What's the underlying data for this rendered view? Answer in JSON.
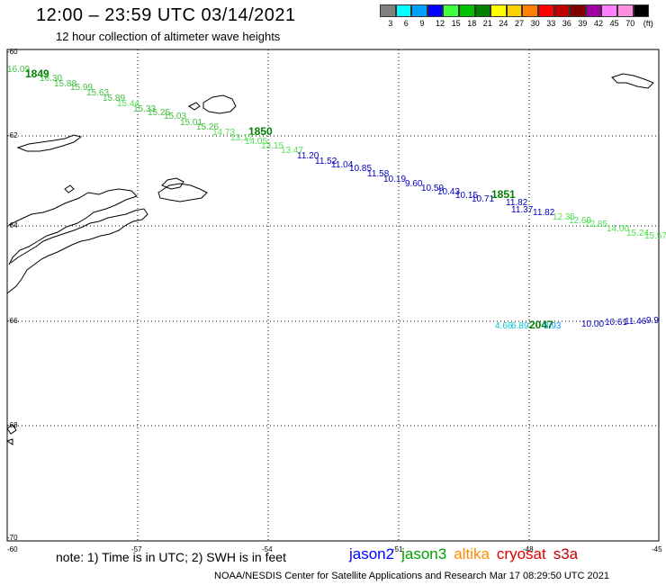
{
  "header": {
    "title": "12:00 – 23:59 UTC 03/14/2021",
    "subtitle": "12 hour collection of altimeter wave heights"
  },
  "legend": {
    "colors": [
      "#808080",
      "#00ffff",
      "#00a0ff",
      "#0000ff",
      "#40ff40",
      "#00c000",
      "#008000",
      "#ffff00",
      "#ffd000",
      "#ff8000",
      "#ff0000",
      "#c00000",
      "#800000",
      "#a000a0",
      "#ff80ff",
      "#ff90e0",
      "#000000"
    ],
    "labels": [
      "3",
      "6",
      "9",
      "12",
      "15",
      "18",
      "21",
      "24",
      "27",
      "30",
      "33",
      "36",
      "39",
      "42",
      "45",
      "70",
      "(ft)"
    ]
  },
  "axes": {
    "lat_labels": [
      "-60",
      "-62",
      "-64",
      "-66",
      "-68",
      "-70"
    ],
    "lon_labels": [
      "-60",
      "-57",
      "-54",
      "-51",
      "-48",
      "-45"
    ]
  },
  "tracks": [
    {
      "labels": [
        {
          "t": "16.09",
          "c": "#40c040"
        },
        {
          "t": "1849",
          "c": "#008000",
          "time": true
        },
        {
          "t": "16.30",
          "c": "#40c040"
        },
        {
          "t": "15.88",
          "c": "#40c040"
        },
        {
          "t": "15.99",
          "c": "#40c040"
        },
        {
          "t": "15.63",
          "c": "#40c040"
        },
        {
          "t": "15.89",
          "c": "#40c040"
        },
        {
          "t": "15.44",
          "c": "#50e050"
        },
        {
          "t": "15.33",
          "c": "#40c040"
        },
        {
          "t": "15.25",
          "c": "#40c040"
        },
        {
          "t": "15.03",
          "c": "#40c040"
        },
        {
          "t": "15.01",
          "c": "#40c040"
        },
        {
          "t": "15.26",
          "c": "#40c040"
        },
        {
          "t": "14.73",
          "c": "#50e050"
        },
        {
          "t": "1850",
          "c": "#008000",
          "time": true
        },
        {
          "t": "13.17",
          "c": "#50e050"
        },
        {
          "t": "14.05",
          "c": "#50e050"
        },
        {
          "t": "13.15",
          "c": "#50e050"
        },
        {
          "t": "13.47",
          "c": "#50e050"
        },
        {
          "t": "11.20",
          "c": "#0000c0"
        },
        {
          "t": "11.52",
          "c": "#0000c0"
        },
        {
          "t": "11.04",
          "c": "#0000c0"
        },
        {
          "t": "10.85",
          "c": "#0000c0"
        },
        {
          "t": "11.58",
          "c": "#0000c0"
        },
        {
          "t": "10.19",
          "c": "#0000c0"
        },
        {
          "t": "9.60",
          "c": "#0000c0"
        },
        {
          "t": "10.59",
          "c": "#0000c0"
        },
        {
          "t": "10.43",
          "c": "#0000c0"
        },
        {
          "t": "10.15",
          "c": "#0000c0"
        },
        {
          "t": "10.71",
          "c": "#0000c0"
        },
        {
          "t": "1851",
          "c": "#008000",
          "time": true
        },
        {
          "t": "11.82",
          "c": "#0000c0"
        },
        {
          "t": "11.37",
          "c": "#0000c0"
        },
        {
          "t": "11.82",
          "c": "#0000c0"
        },
        {
          "t": "12.35",
          "c": "#50e050"
        },
        {
          "t": "12.69",
          "c": "#50e050"
        },
        {
          "t": "12.85",
          "c": "#50e050"
        },
        {
          "t": "14.00",
          "c": "#50e050"
        },
        {
          "t": "15.24",
          "c": "#50e050"
        },
        {
          "t": "15.57",
          "c": "#50e050"
        }
      ]
    },
    {
      "labels": [
        {
          "t": "4.66",
          "c": "#00c8d0"
        },
        {
          "t": "6.89",
          "c": "#00c8d0"
        },
        {
          "t": "2047",
          "c": "#008000",
          "time": true
        },
        {
          "t": "8.93",
          "c": "#00a0ff"
        },
        {
          "t": "10.00",
          "c": "#0000c0"
        },
        {
          "t": "10.61",
          "c": "#0000c0"
        },
        {
          "t": "11.46",
          "c": "#0000c0"
        },
        {
          "t": "9.9",
          "c": "#0000c0"
        }
      ]
    }
  ],
  "note": "note: 1) Time is in UTC; 2) SWH is in feet",
  "satellites": [
    {
      "name": "jason2",
      "color": "#0000ff"
    },
    {
      "name": "jason3",
      "color": "#00a000"
    },
    {
      "name": "altika",
      "color": "#ff8c00"
    },
    {
      "name": "cryosat",
      "color": "#e00000"
    },
    {
      "name": "s3a",
      "color": "#c00000"
    }
  ],
  "footer": "NOAA/NESDIS Center for Satellite Applications and Research    Mar 17 08:29:50 UTC 2021"
}
